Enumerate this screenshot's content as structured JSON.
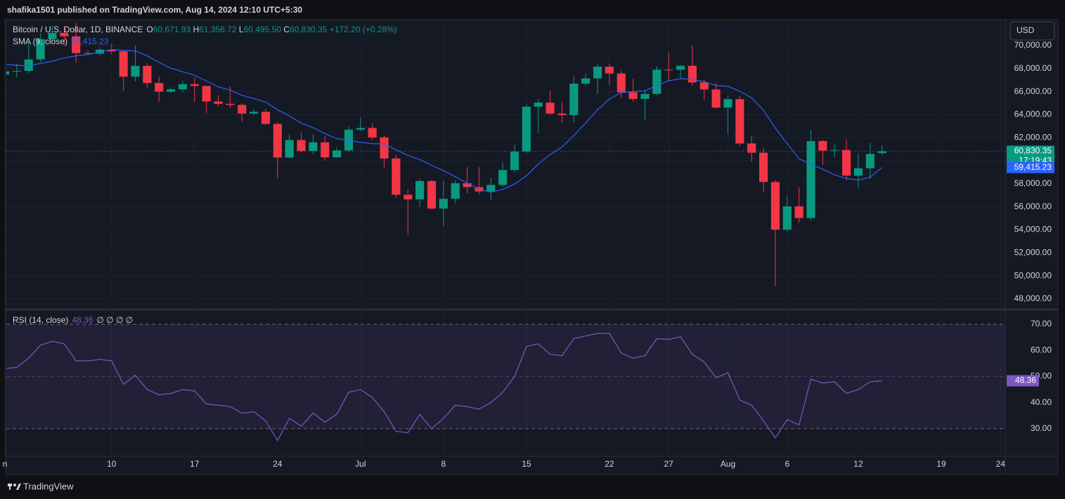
{
  "header": {
    "byline": "shafika1501 published on TradingView.com, Aug 14, 2024 12:10 UTC+5:30",
    "brand": "TradingView"
  },
  "chart_data": [
    {
      "type": "candlestick",
      "title": "Bitcoin / U.S. Dollar, 1D, BINANCE",
      "legend": {
        "open": "O",
        "high": "H",
        "low": "L",
        "close": "C"
      },
      "last_labels": {
        "open": "60,671.93",
        "high": "61,356.72",
        "low": "60,495.50",
        "close": "60,830.35"
      },
      "change": "+172.20 (+0.28%)",
      "countdown": "17:19:43",
      "currency": "USD",
      "up_color": "#089981",
      "down_color": "#f23645",
      "grid": true,
      "categories": [
        "n",
        null,
        null,
        null,
        null,
        null,
        null,
        null,
        null,
        "10",
        null,
        null,
        null,
        null,
        null,
        null,
        "17",
        null,
        null,
        null,
        null,
        null,
        null,
        "24",
        null,
        null,
        null,
        null,
        null,
        null,
        "Jul",
        null,
        null,
        null,
        null,
        null,
        null,
        "8",
        null,
        null,
        null,
        null,
        null,
        null,
        "15",
        null,
        null,
        null,
        null,
        null,
        null,
        "22",
        null,
        null,
        null,
        null,
        "27",
        null,
        null,
        null,
        null,
        "Aug",
        null,
        null,
        null,
        null,
        "6",
        null,
        null,
        null,
        null,
        null,
        "12",
        null,
        null,
        null,
        null,
        null,
        null,
        "19",
        null,
        null,
        null,
        null,
        "24"
      ],
      "ohlc": [
        [
          67490,
          67860,
          67440,
          67760
        ],
        [
          67760,
          68400,
          67260,
          67800
        ],
        [
          67800,
          70280,
          67600,
          68800
        ],
        [
          68800,
          71060,
          68560,
          70560
        ],
        [
          70560,
          71740,
          70400,
          71100
        ],
        [
          71100,
          71620,
          70120,
          70800
        ],
        [
          70800,
          71950,
          68520,
          69350
        ],
        [
          69350,
          69590,
          69210,
          69300
        ],
        [
          69300,
          69850,
          69130,
          69650
        ],
        [
          69650,
          70150,
          69230,
          69500
        ],
        [
          69500,
          69560,
          66050,
          67300
        ],
        [
          67300,
          69990,
          66900,
          68240
        ],
        [
          68240,
          68450,
          66300,
          66750
        ],
        [
          66750,
          67300,
          65100,
          66000
        ],
        [
          66000,
          66400,
          65900,
          66200
        ],
        [
          66200,
          66950,
          65950,
          66650
        ],
        [
          66650,
          67200,
          65100,
          66500
        ],
        [
          66500,
          66500,
          64100,
          65150
        ],
        [
          65150,
          65700,
          64700,
          64950
        ],
        [
          64950,
          66450,
          64600,
          64850
        ],
        [
          64850,
          65000,
          63400,
          64100
        ],
        [
          64100,
          64500,
          63950,
          64250
        ],
        [
          64250,
          64500,
          63100,
          63200
        ],
        [
          63200,
          63350,
          58500,
          60280
        ],
        [
          60280,
          62300,
          60250,
          61800
        ],
        [
          61800,
          62450,
          60700,
          60850
        ],
        [
          60850,
          62300,
          60600,
          61600
        ],
        [
          61600,
          62150,
          60000,
          60300
        ],
        [
          60300,
          61150,
          60250,
          60900
        ],
        [
          60900,
          63000,
          60700,
          62700
        ],
        [
          62700,
          63800,
          62600,
          62850
        ],
        [
          62850,
          63250,
          61800,
          62030
        ],
        [
          62030,
          62200,
          59400,
          60200
        ],
        [
          60200,
          60500,
          56800,
          57050
        ],
        [
          57050,
          57500,
          53550,
          56650
        ],
        [
          56650,
          58450,
          56000,
          58240
        ],
        [
          58240,
          58350,
          55750,
          55850
        ],
        [
          55850,
          58250,
          54300,
          56700
        ],
        [
          56700,
          58300,
          56300,
          58050
        ],
        [
          58050,
          59450,
          57200,
          57720
        ],
        [
          57720,
          59450,
          57100,
          57340
        ],
        [
          57340,
          58550,
          56600,
          57900
        ],
        [
          57900,
          59850,
          57750,
          59200
        ],
        [
          59200,
          61400,
          59000,
          60800
        ],
        [
          60800,
          64900,
          60650,
          64700
        ],
        [
          64700,
          65350,
          62400,
          65050
        ],
        [
          65050,
          66100,
          64000,
          64100
        ],
        [
          64100,
          65100,
          63300,
          63970
        ],
        [
          63970,
          67400,
          63300,
          66700
        ],
        [
          66700,
          67600,
          66500,
          67150
        ],
        [
          67150,
          68350,
          65800,
          68170
        ],
        [
          68170,
          68450,
          66600,
          67580
        ],
        [
          67580,
          67800,
          65500,
          65940
        ],
        [
          65940,
          67100,
          65150,
          65370
        ],
        [
          65370,
          66150,
          63500,
          65800
        ],
        [
          65800,
          68200,
          65700,
          67910
        ],
        [
          67910,
          69400,
          66900,
          67900
        ],
        [
          67900,
          68300,
          67100,
          68250
        ],
        [
          68250,
          70000,
          66500,
          66800
        ],
        [
          66800,
          67000,
          65300,
          66190
        ],
        [
          66190,
          66800,
          64500,
          64620
        ],
        [
          64620,
          65600,
          62300,
          65350
        ],
        [
          65350,
          65600,
          61300,
          61500
        ],
        [
          61500,
          62200,
          59900,
          60700
        ],
        [
          60700,
          61100,
          57300,
          58160
        ],
        [
          58160,
          58300,
          49100,
          54020
        ],
        [
          54020,
          57000,
          53900,
          56040
        ],
        [
          56040,
          57700,
          54600,
          55030
        ],
        [
          55030,
          62700,
          54800,
          61710
        ],
        [
          61710,
          61800,
          59650,
          60880
        ],
        [
          60880,
          61450,
          60300,
          60940
        ],
        [
          60940,
          61850,
          58300,
          58710
        ],
        [
          58710,
          60650,
          57650,
          59350
        ],
        [
          59350,
          61550,
          58450,
          60600
        ],
        [
          60671.93,
          61356.72,
          60495.5,
          60830.35
        ],
        null,
        null,
        null,
        null,
        null,
        null,
        null,
        null,
        null,
        null
      ],
      "series": [
        {
          "name": "SMA (9, close)",
          "color": "#2962ff",
          "last_label": "59,415.23",
          "values": [
            68362,
            68284,
            68229,
            68458,
            68647,
            68919,
            69113,
            69219,
            69458,
            69651,
            69596,
            69533,
            69110,
            68543,
            68032,
            67732,
            67421,
            66921,
            66416,
            66143,
            65683,
            65406,
            65094,
            64437,
            63898,
            63270,
            62876,
            62359,
            61920,
            61764,
            61609,
            61479,
            61470,
            60942,
            60476,
            60102,
            59608,
            59141,
            58624,
            58054,
            57533,
            57278,
            57517,
            57978,
            58696,
            59718,
            60540,
            61198,
            62196,
            63286,
            64427,
            65358,
            65929,
            66003,
            66087,
            66510,
            66947,
            67119,
            67080,
            66860,
            66531,
            66466,
            66036,
            65469,
            64386,
            62843,
            61487,
            60179,
            59681,
            59266,
            58776,
            58466,
            58316,
            58587,
            59415.23,
            null,
            null,
            null,
            null,
            null,
            null,
            null,
            null,
            null,
            null
          ]
        }
      ],
      "ylim": [
        47150,
        72130
      ],
      "yticks": [
        {
          "value": 48000,
          "label": "48,000.00"
        },
        {
          "value": 50000,
          "label": "50,000.00"
        },
        {
          "value": 52000,
          "label": "52,000.00"
        },
        {
          "value": 54000,
          "label": "54,000.00"
        },
        {
          "value": 56000,
          "label": "56,000.00"
        },
        {
          "value": 58000,
          "label": "58,000.00"
        },
        {
          "value": 60000,
          "label": "60,000.00"
        },
        {
          "value": 62000,
          "label": "62,000.00"
        },
        {
          "value": 64000,
          "label": "64,000.00"
        },
        {
          "value": 66000,
          "label": "66,000.00"
        },
        {
          "value": 68000,
          "label": "68,000.00"
        },
        {
          "value": 70000,
          "label": "70,000.00"
        }
      ]
    },
    {
      "type": "line",
      "legend_extra": "∅ ∅ ∅ ∅",
      "levels": [
        70,
        50,
        30
      ],
      "band_color": "#7e57c2",
      "series": [
        {
          "name": "RSI (14, close)",
          "color": "#7e57c2",
          "last_label": "48.36",
          "values": [
            53,
            53.5,
            57,
            62,
            63.5,
            62.5,
            56,
            56,
            56.5,
            56,
            47,
            50.5,
            45,
            43,
            43.5,
            45,
            44.5,
            39.5,
            39,
            38.5,
            36,
            36.5,
            33,
            25.5,
            34,
            31,
            36,
            32.5,
            35.5,
            44,
            45,
            42,
            36.5,
            29,
            28.5,
            35.5,
            30,
            34,
            39,
            38.5,
            37.5,
            40,
            44,
            50,
            61.5,
            62.5,
            58.5,
            58,
            64.5,
            65.5,
            66.5,
            66.5,
            59,
            57,
            58,
            64.5,
            64.2,
            65.2,
            58.5,
            55.5,
            49.5,
            51.5,
            41,
            39,
            33,
            26.5,
            33.5,
            31.5,
            49,
            47.5,
            48,
            43.5,
            45,
            48,
            48.36,
            null,
            null,
            null,
            null,
            null,
            null,
            null,
            null,
            null,
            null
          ]
        }
      ],
      "ylim": [
        19.5,
        75.1
      ],
      "yticks": [
        {
          "value": 30,
          "label": "30.00"
        },
        {
          "value": 40,
          "label": "40.00"
        },
        {
          "value": 50,
          "label": "50.00"
        },
        {
          "value": 60,
          "label": "60.00"
        },
        {
          "value": 70,
          "label": "70.00"
        }
      ]
    }
  ]
}
